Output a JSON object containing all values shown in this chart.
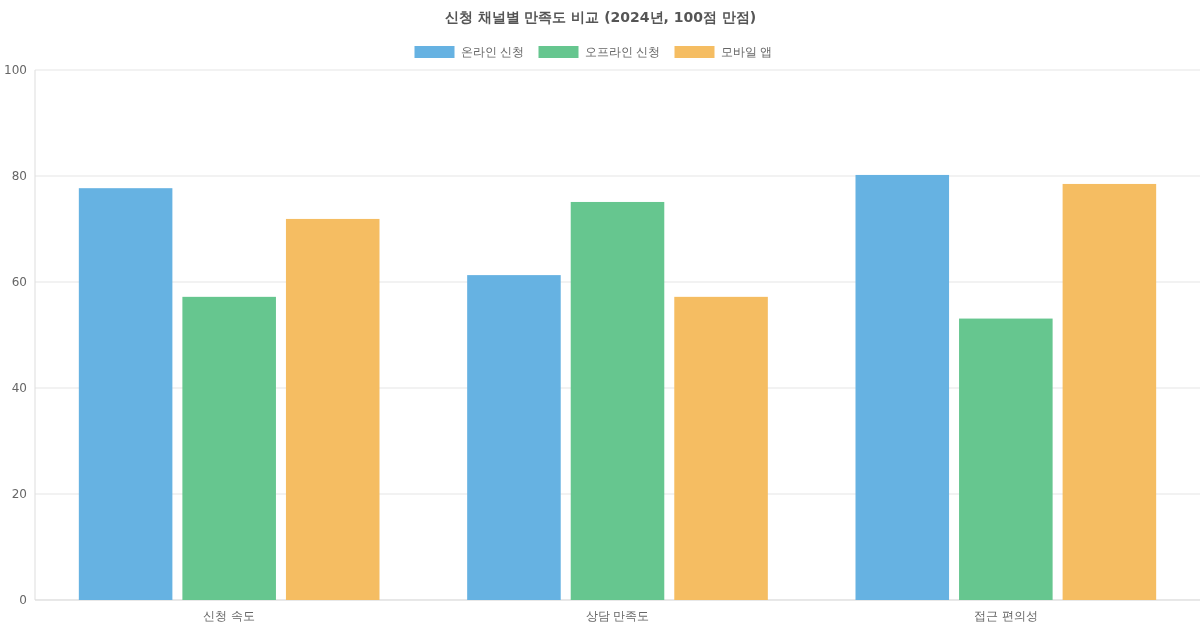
{
  "chart_data": {
    "type": "bar",
    "title": "신청 채널별 만족도 비교 (2024년, 100점 만점)",
    "categories": [
      "신청 속도",
      "상담 만족도",
      "접근 편의성"
    ],
    "series": [
      {
        "name": "온라인 신청",
        "color": "#66b2e2",
        "values": [
          77.7,
          61.3,
          80.2
        ]
      },
      {
        "name": "오프라인 신청",
        "color": "#66c68f",
        "values": [
          57.2,
          75.1,
          53.1
        ]
      },
      {
        "name": "모바일 앱",
        "color": "#f5bd62",
        "values": [
          71.9,
          57.2,
          78.5
        ]
      }
    ],
    "ylim": [
      0,
      100
    ],
    "yticks": [
      0,
      20,
      40,
      60,
      80,
      100
    ],
    "grid": "y",
    "legend": "top"
  }
}
